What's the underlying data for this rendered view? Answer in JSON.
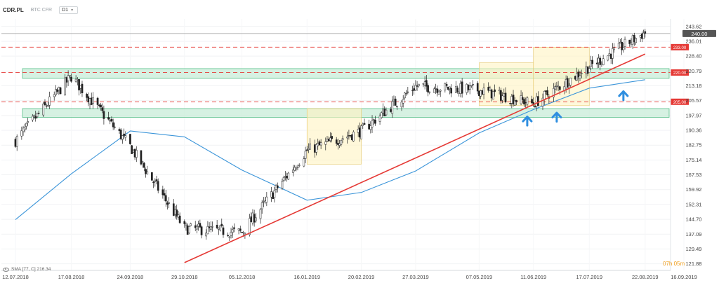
{
  "header": {
    "symbol": "CDR.PL",
    "provider": "BTC CFR",
    "timeframe": "D1"
  },
  "sma_legend": "SMA [77, C] 216.34",
  "countdown": "07h 05m",
  "colors": {
    "bull": "#ffffff",
    "bear": "#222222",
    "wick": "#222222",
    "sma": "#3b95d9",
    "trendline": "#e53935",
    "resistance": "#e53935",
    "zone_fill": "#c8ecd8",
    "zone_stroke": "#59c08a",
    "consolidation_fill": "#fff4c2",
    "consolidation_stroke": "#e6c76a",
    "arrow": "#2f8fe0",
    "current_price": "#555555"
  },
  "chart_data": {
    "type": "candlestick",
    "title": "",
    "xlabel": "",
    "ylabel": "",
    "ylim": [
      118.5,
      247.5
    ],
    "y_ticks": [
      243.62,
      236.01,
      228.4,
      220.79,
      213.18,
      205.57,
      197.97,
      190.36,
      182.75,
      175.14,
      167.53,
      159.92,
      152.31,
      144.7,
      137.09,
      129.49,
      121.88
    ],
    "x_ticks": [
      "12.07.2018",
      "17.08.2018",
      "24.09.2018",
      "29.10.2018",
      "05.12.2018",
      "16.01.2019",
      "20.02.2019",
      "27.03.2019",
      "07.05.2019",
      "11.06.2019",
      "17.07.2019",
      "22.08.2019",
      "16.09.2019"
    ],
    "current_price": 240.0,
    "resistance_levels": [
      {
        "label": "233.00",
        "value": 233.0
      },
      {
        "label": "220.00",
        "value": 220.0
      },
      {
        "label": "205.00",
        "value": 205.0
      }
    ],
    "zones": [
      {
        "name": "upper-zone",
        "from": "12.07.2018",
        "to": "16.09.2019",
        "low": 217.0,
        "high": 222.0
      },
      {
        "name": "lower-zone",
        "from": "12.07.2018",
        "to": "16.09.2019",
        "low": 197.0,
        "high": 201.5
      }
    ],
    "consolidation_boxes": [
      {
        "from": "16.01.2019",
        "to": "20.02.2019",
        "low": 173.0,
        "high": 201.5
      },
      {
        "from": "07.05.2019",
        "to": "11.06.2019",
        "low": 203.0,
        "high": 225.0
      },
      {
        "from": "11.06.2019",
        "to": "17.07.2019",
        "low": 203.0,
        "high": 233.0
      }
    ],
    "trendline": {
      "from": {
        "date": "29.10.2018",
        "value": 122.5
      },
      "to": {
        "date": "22.08.2019",
        "value": 229.5
      }
    },
    "arrows": [
      {
        "date": "07.06.2019",
        "value": 195.0
      },
      {
        "date": "26.06.2019",
        "value": 197.0
      },
      {
        "date": "08.08.2019",
        "value": 208.0
      }
    ],
    "sma": [
      {
        "x": "12.07.2018",
        "y": 144.5
      },
      {
        "x": "17.08.2018",
        "y": 168.0
      },
      {
        "x": "24.09.2018",
        "y": 190.0
      },
      {
        "x": "29.10.2018",
        "y": 187.0
      },
      {
        "x": "05.12.2018",
        "y": 170.0
      },
      {
        "x": "16.01.2019",
        "y": 154.5
      },
      {
        "x": "20.02.2019",
        "y": 158.5
      },
      {
        "x": "27.03.2019",
        "y": 169.5
      },
      {
        "x": "07.05.2019",
        "y": 189.0
      },
      {
        "x": "11.06.2019",
        "y": 201.0
      },
      {
        "x": "17.07.2019",
        "y": 212.0
      },
      {
        "x": "22.08.2019",
        "y": 216.3
      }
    ],
    "price_path": [
      {
        "x": "12.07.2018",
        "y": 185.0
      },
      {
        "x": "17.08.2018",
        "y": 218.0
      },
      {
        "x": "24.09.2018",
        "y": 182.0
      },
      {
        "x": "29.10.2018",
        "y": 140.0
      },
      {
        "x": "05.12.2018",
        "y": 138.0
      },
      {
        "x": "16.01.2019",
        "y": 180.0
      },
      {
        "x": "20.02.2019",
        "y": 190.0
      },
      {
        "x": "27.03.2019",
        "y": 213.0
      },
      {
        "x": "07.05.2019",
        "y": 211.0
      },
      {
        "x": "11.06.2019",
        "y": 204.0
      },
      {
        "x": "17.07.2019",
        "y": 223.0
      },
      {
        "x": "22.08.2019",
        "y": 240.5
      }
    ]
  }
}
